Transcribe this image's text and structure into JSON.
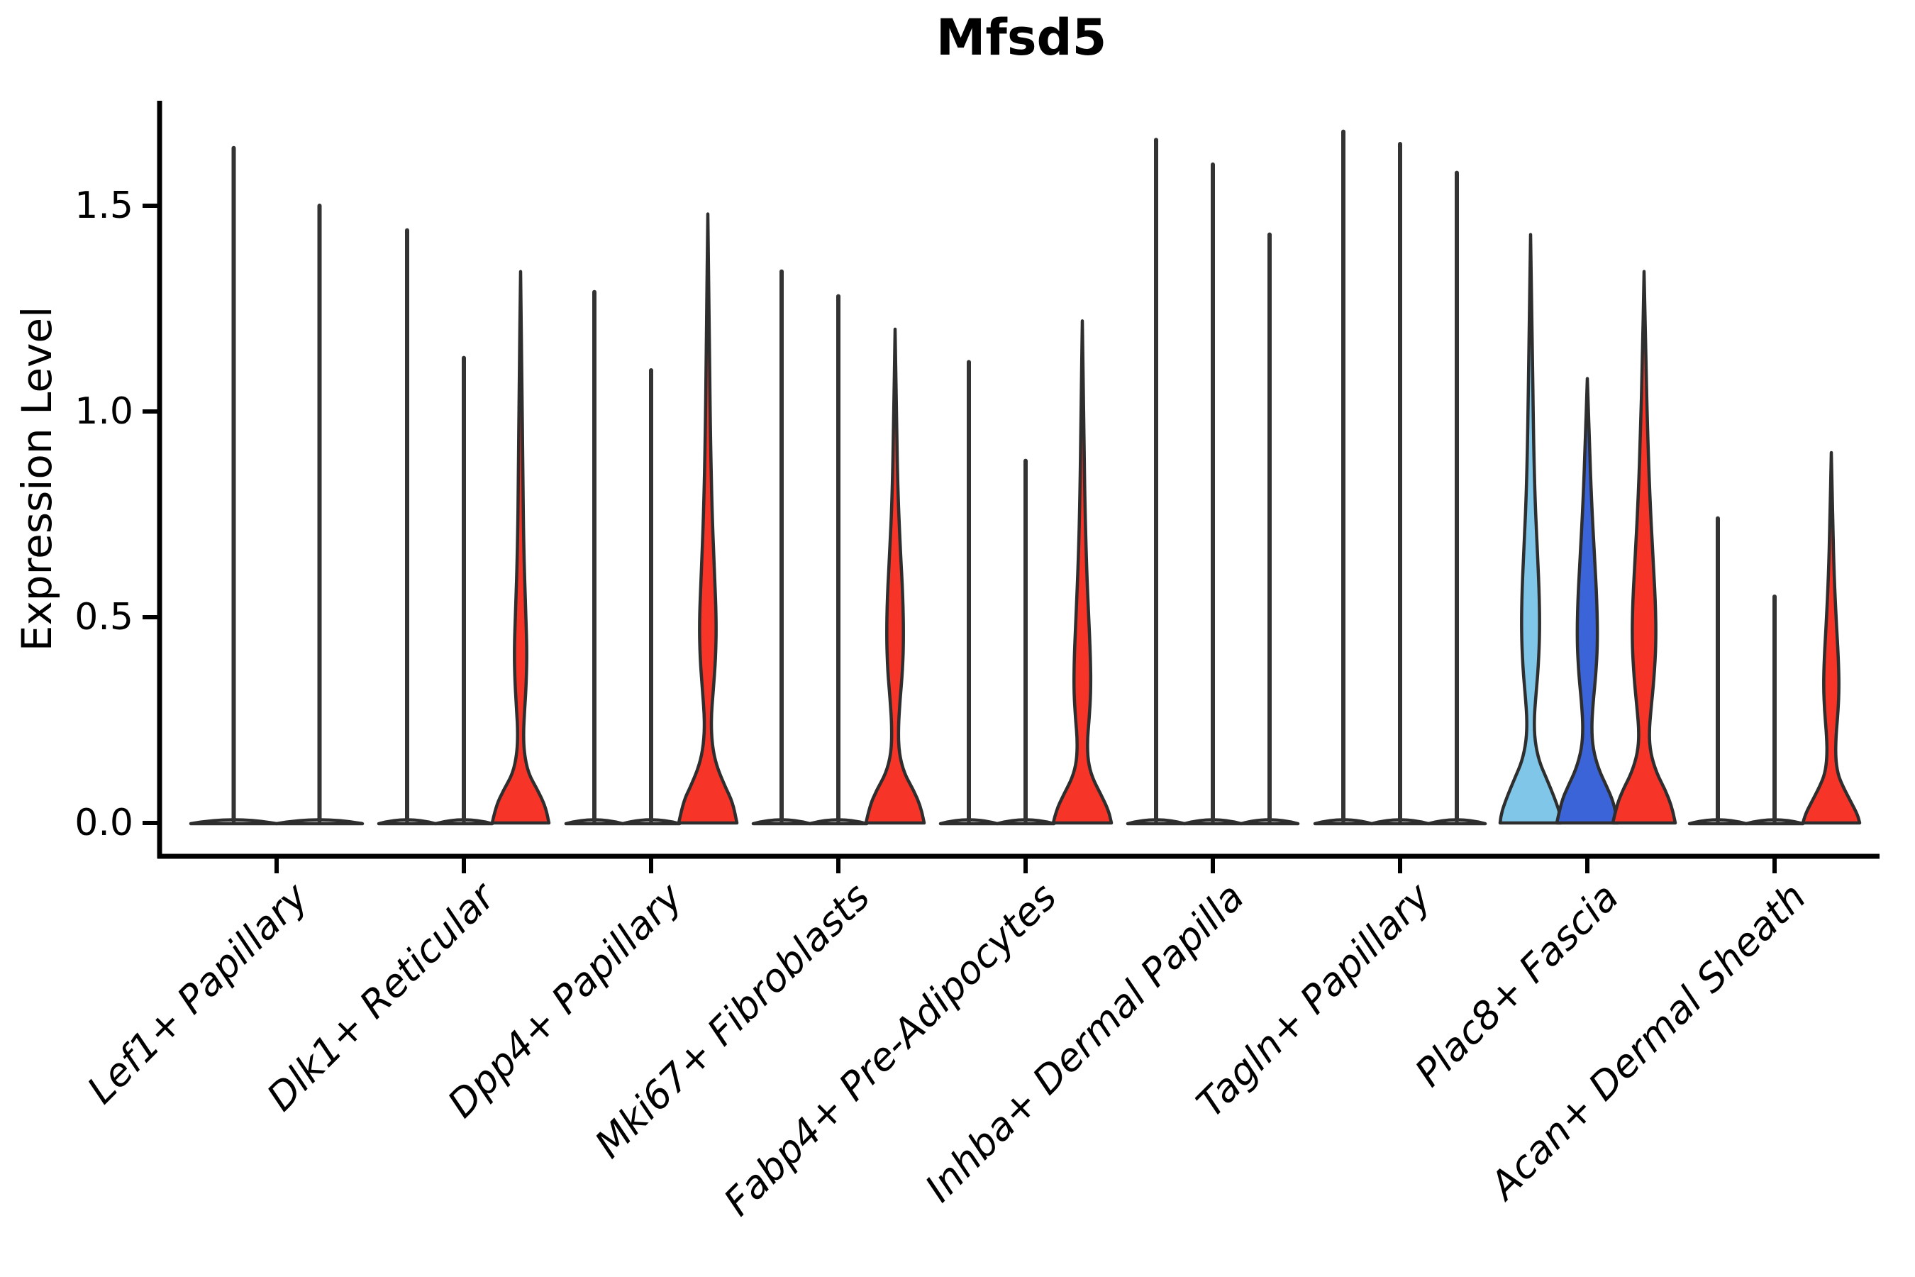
{
  "title": "Mfsd5",
  "ylabel": "Expression Level",
  "colors": {
    "white": "#ffffff",
    "red": "#f63428",
    "blue": "#3b64d8",
    "lightblue": "#7fc6e8",
    "outline": "#2e2e2e",
    "spike": "#333333",
    "axis": "#000000"
  },
  "chart_data": {
    "type": "violin",
    "title": "Mfsd5",
    "xlabel": "",
    "ylabel": "Expression Level",
    "ylim": [
      -0.08,
      1.76
    ],
    "yticks": [
      {
        "label": "0.0",
        "value": 0.0
      },
      {
        "label": "0.5",
        "value": 0.5
      },
      {
        "label": "1.0",
        "value": 1.0
      },
      {
        "label": "1.5",
        "value": 1.5
      }
    ],
    "grid": false,
    "legend": "none",
    "categories": [
      "Lef1+ Papillary",
      "Dlk1+ Reticular",
      "Dpp4+ Papillary",
      "Mki67+ Fibroblasts",
      "Fabp4+ Pre-Adipocytes",
      "Inhba+ Dermal Papilla",
      "Tagln+ Papillary",
      "Plac8+ Fascia",
      "Acan+ Dermal Sheath"
    ],
    "groups": [
      {
        "category": "Lef1+ Papillary",
        "violins": [
          {
            "split": 1,
            "pos": -0.5,
            "w": 121,
            "max": 1.64,
            "fill": "white"
          },
          {
            "split": 2,
            "pos": 0.5,
            "w": 121,
            "max": 1.5,
            "fill": "white"
          }
        ]
      },
      {
        "category": "Dlk1+ Reticular",
        "violins": [
          {
            "split": 1,
            "pos": -1,
            "w": 80,
            "max": 1.44,
            "fill": "white"
          },
          {
            "split": 2,
            "pos": 0,
            "w": 80,
            "max": 1.13,
            "fill": "white"
          },
          {
            "split": 3,
            "pos": 1,
            "w": 80,
            "max": 1.34,
            "fill": "red",
            "profile": [
              [
                1.34,
                0
              ],
              [
                1.08,
                2
              ],
              [
                0.85,
                3
              ],
              [
                0.66,
                4.5
              ],
              [
                0.52,
                7
              ],
              [
                0.42,
                9
              ],
              [
                0.34,
                8
              ],
              [
                0.27,
                5.5
              ],
              [
                0.22,
                4
              ],
              [
                0.17,
                5
              ],
              [
                0.12,
                11
              ],
              [
                0.08,
                24
              ],
              [
                0.04,
                35
              ],
              [
                0,
                40
              ]
            ]
          }
        ]
      },
      {
        "category": "Dpp4+ Papillary",
        "violins": [
          {
            "split": 1,
            "pos": -1,
            "w": 80,
            "max": 1.29,
            "fill": "white"
          },
          {
            "split": 2,
            "pos": 0,
            "w": 80,
            "max": 1.1,
            "fill": "white"
          },
          {
            "split": 3,
            "pos": 1,
            "w": 80,
            "max": 1.48,
            "fill": "red",
            "profile": [
              [
                1.48,
                0
              ],
              [
                1.2,
                2
              ],
              [
                0.95,
                3.5
              ],
              [
                0.75,
                6
              ],
              [
                0.6,
                9.5
              ],
              [
                0.49,
                12
              ],
              [
                0.4,
                11
              ],
              [
                0.32,
                7.5
              ],
              [
                0.25,
                4.5
              ],
              [
                0.19,
                6
              ],
              [
                0.14,
                12
              ],
              [
                0.09,
                24
              ],
              [
                0.05,
                35
              ],
              [
                0,
                41
              ]
            ]
          }
        ]
      },
      {
        "category": "Mki67+ Fibroblasts",
        "violins": [
          {
            "split": 1,
            "pos": -1,
            "w": 80,
            "max": 1.34,
            "fill": "white"
          },
          {
            "split": 2,
            "pos": 0,
            "w": 80,
            "max": 1.28,
            "fill": "white"
          },
          {
            "split": 3,
            "pos": 1,
            "w": 80,
            "max": 1.2,
            "fill": "red",
            "profile": [
              [
                1.2,
                0
              ],
              [
                0.98,
                2
              ],
              [
                0.8,
                4
              ],
              [
                0.66,
                7.5
              ],
              [
                0.55,
                11
              ],
              [
                0.45,
                12
              ],
              [
                0.37,
                10.5
              ],
              [
                0.3,
                7
              ],
              [
                0.23,
                4.5
              ],
              [
                0.17,
                5.5
              ],
              [
                0.12,
                13
              ],
              [
                0.08,
                26
              ],
              [
                0.04,
                36
              ],
              [
                0,
                41
              ]
            ]
          }
        ]
      },
      {
        "category": "Fabp4+ Pre-Adipocytes",
        "violins": [
          {
            "split": 1,
            "pos": -1,
            "w": 80,
            "max": 1.12,
            "fill": "white"
          },
          {
            "split": 2,
            "pos": 0,
            "w": 80,
            "max": 0.88,
            "fill": "white"
          },
          {
            "split": 3,
            "pos": 1,
            "w": 80,
            "max": 1.22,
            "fill": "red",
            "profile": [
              [
                1.22,
                0
              ],
              [
                0.98,
                2
              ],
              [
                0.78,
                3.5
              ],
              [
                0.62,
                6
              ],
              [
                0.5,
                9
              ],
              [
                0.4,
                11.5
              ],
              [
                0.32,
                12
              ],
              [
                0.25,
                9.5
              ],
              [
                0.2,
                7
              ],
              [
                0.15,
                8
              ],
              [
                0.11,
                14
              ],
              [
                0.07,
                26
              ],
              [
                0.03,
                37
              ],
              [
                0,
                41
              ]
            ]
          }
        ]
      },
      {
        "category": "Inhba+ Dermal Papilla",
        "violins": [
          {
            "split": 1,
            "pos": -1,
            "w": 80,
            "max": 1.66,
            "fill": "white"
          },
          {
            "split": 2,
            "pos": 0,
            "w": 80,
            "max": 1.6,
            "fill": "white"
          },
          {
            "split": 3,
            "pos": 1,
            "w": 80,
            "max": 1.43,
            "fill": "white"
          }
        ]
      },
      {
        "category": "Tagln+ Papillary",
        "violins": [
          {
            "split": 1,
            "pos": -1,
            "w": 80,
            "max": 1.68,
            "fill": "white"
          },
          {
            "split": 2,
            "pos": 0,
            "w": 80,
            "max": 1.65,
            "fill": "white"
          },
          {
            "split": 3,
            "pos": 1,
            "w": 80,
            "max": 1.58,
            "fill": "white"
          }
        ]
      },
      {
        "category": "Plac8+ Fascia",
        "violins": [
          {
            "split": 1,
            "pos": -1,
            "w": 80,
            "max": 1.43,
            "fill": "lightblue",
            "profile": [
              [
                1.43,
                0
              ],
              [
                1.15,
                2.5
              ],
              [
                0.95,
                4
              ],
              [
                0.8,
                6
              ],
              [
                0.68,
                9
              ],
              [
                0.57,
                12
              ],
              [
                0.47,
                13
              ],
              [
                0.38,
                11
              ],
              [
                0.3,
                7
              ],
              [
                0.25,
                5
              ],
              [
                0.2,
                6
              ],
              [
                0.15,
                12
              ],
              [
                0.11,
                22
              ],
              [
                0.06,
                34
              ],
              [
                0.02,
                42
              ],
              [
                0,
                43
              ]
            ]
          },
          {
            "split": 2,
            "pos": 0,
            "w": 80,
            "max": 1.08,
            "fill": "blue",
            "profile": [
              [
                1.08,
                0
              ],
              [
                0.92,
                3
              ],
              [
                0.78,
                6
              ],
              [
                0.65,
                10
              ],
              [
                0.54,
                13.5
              ],
              [
                0.44,
                14.5
              ],
              [
                0.36,
                12
              ],
              [
                0.29,
                8
              ],
              [
                0.23,
                6
              ],
              [
                0.18,
                8
              ],
              [
                0.13,
                16
              ],
              [
                0.09,
                27
              ],
              [
                0.05,
                37
              ],
              [
                0,
                43
              ]
            ]
          },
          {
            "split": 3,
            "pos": 1,
            "w": 80,
            "max": 1.34,
            "fill": "red",
            "profile": [
              [
                1.34,
                0
              ],
              [
                1.12,
                2.5
              ],
              [
                0.95,
                5
              ],
              [
                0.8,
                8
              ],
              [
                0.66,
                12
              ],
              [
                0.54,
                16
              ],
              [
                0.44,
                17
              ],
              [
                0.35,
                14
              ],
              [
                0.28,
                10
              ],
              [
                0.22,
                7
              ],
              [
                0.17,
                9
              ],
              [
                0.12,
                18
              ],
              [
                0.08,
                30
              ],
              [
                0.04,
                39
              ],
              [
                0,
                44
              ]
            ]
          }
        ]
      },
      {
        "category": "Acan+ Dermal Sheath",
        "violins": [
          {
            "split": 1,
            "pos": -1,
            "w": 80,
            "max": 0.74,
            "fill": "white"
          },
          {
            "split": 2,
            "pos": 0,
            "w": 80,
            "max": 0.55,
            "fill": "white"
          },
          {
            "split": 3,
            "pos": 1,
            "w": 80,
            "max": 0.9,
            "fill": "red",
            "profile": [
              [
                0.9,
                0
              ],
              [
                0.73,
                2
              ],
              [
                0.6,
                4
              ],
              [
                0.49,
                7
              ],
              [
                0.4,
                10
              ],
              [
                0.33,
                11
              ],
              [
                0.27,
                9.5
              ],
              [
                0.21,
                6.5
              ],
              [
                0.16,
                6
              ],
              [
                0.12,
                9
              ],
              [
                0.09,
                16
              ],
              [
                0.05,
                28
              ],
              [
                0.02,
                37
              ],
              [
                0,
                40
              ]
            ]
          }
        ]
      }
    ]
  }
}
